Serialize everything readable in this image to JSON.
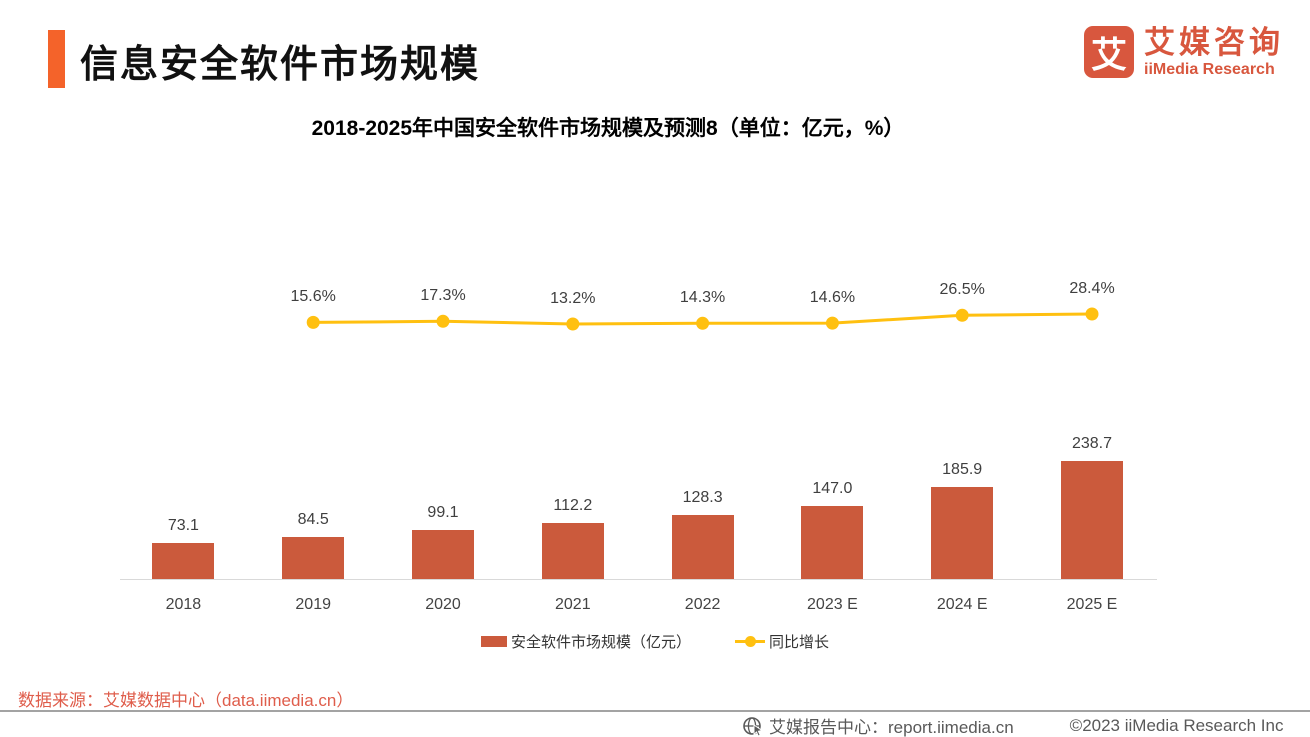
{
  "header": {
    "title": "信息安全软件市场规模",
    "logo_char": "艾",
    "brand_cn": "艾媒咨询",
    "brand_en": "iiMedia Research"
  },
  "chart_data": {
    "type": "bar+line",
    "title": "2018-2025年中国安全软件市场规模及预测8（单位：亿元，%）",
    "categories": [
      "2018",
      "2019",
      "2020",
      "2021",
      "2022",
      "2023 E",
      "2024 E",
      "2025 E"
    ],
    "series": [
      {
        "name": "安全软件市场规模（亿元）",
        "type": "bar",
        "color": "#CB5A3C",
        "values": [
          73.1,
          84.5,
          99.1,
          112.2,
          128.3,
          147.0,
          185.9,
          238.7
        ]
      },
      {
        "name": "同比增长",
        "type": "line",
        "color": "#FFC010",
        "unit": "%",
        "values": [
          null,
          15.6,
          17.3,
          13.2,
          14.3,
          14.6,
          26.5,
          28.4
        ]
      }
    ],
    "legend_position": "bottom",
    "grid": false,
    "value_label_decimals": 1
  },
  "colors": {
    "accent": "#F4632A",
    "bar": "#CB5A3C",
    "line": "#FFC010",
    "brand": "#D8573E",
    "source_text": "#DF5D4B",
    "footer_text": "#595959",
    "axis": "#D9D9D9"
  },
  "footer": {
    "source": "数据来源：艾媒数据中心（data.iimedia.cn）",
    "report_center": "艾媒报告中心：report.iimedia.cn",
    "copyright": "©2023  iiMedia Research  Inc"
  }
}
